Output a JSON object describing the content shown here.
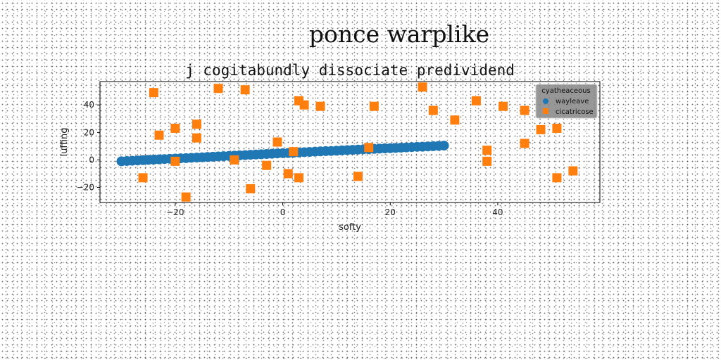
{
  "figure": {
    "suptitle": "ponce warplike"
  },
  "chart_data": {
    "type": "scatter",
    "title": "j cogitabundly dissociate predividend",
    "xlabel": "softy",
    "ylabel": "luffing",
    "xlim": [
      -34,
      59
    ],
    "ylim": [
      -31,
      57
    ],
    "xticks": [
      -20,
      0,
      20,
      40
    ],
    "xtick_labels": [
      "−20",
      "0",
      "20",
      "40"
    ],
    "yticks": [
      -20,
      0,
      20,
      40
    ],
    "ytick_labels": [
      "−20",
      "0",
      "20",
      "40"
    ],
    "grid": false,
    "legend": {
      "title": "cyatheaceous",
      "placement": "top-right"
    },
    "series": [
      {
        "name": "wayleave",
        "marker": "circle",
        "color": "#1f77b4",
        "x": [
          -30.0,
          -29.0,
          -28.0,
          -27.0,
          -26.0,
          -25.0,
          -24.0,
          -23.0,
          -22.0,
          -21.0,
          -20.0,
          -19.0,
          -18.0,
          -17.0,
          -16.0,
          -15.0,
          -14.0,
          -13.0,
          -12.0,
          -11.0,
          -10.0,
          -9.0,
          -8.0,
          -7.0,
          -6.0,
          -5.0,
          -4.0,
          -3.0,
          -2.0,
          -1.0,
          0.0,
          1.0,
          2.0,
          3.0,
          4.0,
          5.0,
          6.0,
          7.0,
          8.0,
          9.0,
          10.0,
          11.0,
          12.0,
          13.0,
          14.0,
          15.0,
          16.0,
          17.0,
          18.0,
          19.0,
          20.0,
          21.0,
          22.0,
          23.0,
          24.0,
          25.0,
          26.0,
          27.0,
          28.0,
          29.0,
          30.0
        ],
        "y": [
          -1.0,
          -0.8,
          -0.6,
          -0.4,
          -0.2,
          0.0,
          0.2,
          0.4,
          0.6,
          0.8,
          1.0,
          1.2,
          1.3,
          1.5,
          1.7,
          1.9,
          2.1,
          2.3,
          2.5,
          2.7,
          2.9,
          3.1,
          3.3,
          3.5,
          3.7,
          3.9,
          4.1,
          4.3,
          4.5,
          4.7,
          4.9,
          5.0,
          5.2,
          5.4,
          5.6,
          5.8,
          6.0,
          6.2,
          6.4,
          6.5,
          6.7,
          6.9,
          7.1,
          7.3,
          7.5,
          7.7,
          7.8,
          8.0,
          8.2,
          8.4,
          8.5,
          8.7,
          8.9,
          9.1,
          9.3,
          9.5,
          9.6,
          9.8,
          10.0,
          10.2,
          10.4
        ]
      },
      {
        "name": "cicatricose",
        "marker": "square",
        "color": "#ff7f0e",
        "x": [
          -24,
          -23,
          -26,
          -20,
          -20,
          -16,
          -16,
          -18,
          -12,
          -7,
          -9,
          -6,
          -3,
          -1,
          1,
          2,
          3,
          3,
          4,
          7,
          14,
          16,
          17,
          26,
          28,
          32,
          36,
          38,
          38,
          41,
          45,
          45,
          48,
          51,
          51,
          54
        ],
        "y": [
          49,
          18,
          -13,
          23,
          -1,
          26,
          16,
          -27,
          52,
          51,
          0,
          -21,
          -4,
          13,
          -10,
          6,
          43,
          -13,
          40,
          39,
          -12,
          9,
          39,
          53,
          36,
          29,
          43,
          7,
          -1,
          39,
          12,
          36,
          22,
          -13,
          23,
          -8
        ]
      }
    ]
  }
}
